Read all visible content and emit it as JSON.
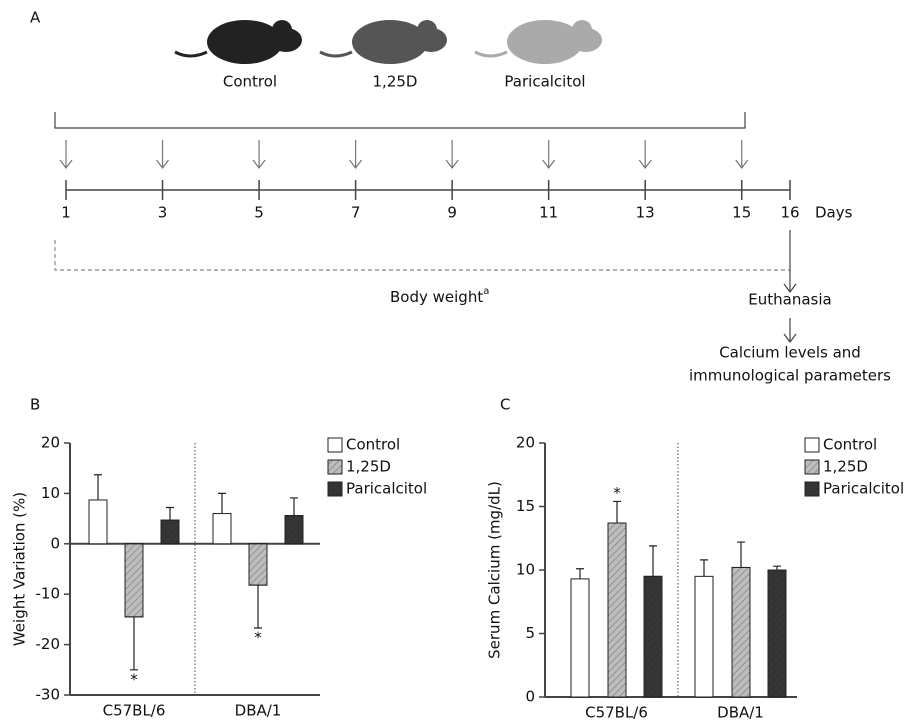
{
  "panel_a": {
    "label": "A",
    "groups": [
      "Control",
      "1,25D",
      "Paricalcitol"
    ],
    "days": [
      1,
      3,
      5,
      7,
      9,
      11,
      13,
      15,
      16
    ],
    "days_label": "Days",
    "body_weight": "Body weight",
    "superscript": "a",
    "euthanasia": "Euthanasia",
    "final": [
      "Calcium levels and",
      "immunological parameters"
    ]
  },
  "chart_data": [
    {
      "type": "bar",
      "panel": "B",
      "ylabel": "Weight Variation (%)",
      "categories": [
        "C57BL/6",
        "DBA/1"
      ],
      "series": [
        {
          "name": "Control",
          "color": "#ffffff",
          "values": [
            8.7,
            6
          ],
          "errors": [
            5,
            4
          ]
        },
        {
          "name": "1,25D",
          "color": "#bdbdbd",
          "pattern": "hatch",
          "values": [
            -14.5,
            -8.2
          ],
          "errors": [
            10.5,
            8.5
          ],
          "labels": [
            "*",
            "*"
          ]
        },
        {
          "name": "Paricalcitol",
          "color": "#333333",
          "pattern": "hatch",
          "values": [
            4.7,
            5.6
          ],
          "errors": [
            2.5,
            3.5
          ]
        }
      ],
      "ylim": [
        -30,
        20
      ],
      "yticks": [
        -30,
        -20,
        -10,
        0,
        10,
        20
      ]
    },
    {
      "type": "bar",
      "panel": "C",
      "ylabel": "Serum Calcium (mg/dL)",
      "categories": [
        "C57BL/6",
        "DBA/1"
      ],
      "series": [
        {
          "name": "Control",
          "color": "#ffffff",
          "values": [
            9.3,
            9.5
          ],
          "errors": [
            0.8,
            1.3
          ]
        },
        {
          "name": "1,25D",
          "color": "#bdbdbd",
          "pattern": "hatch",
          "values": [
            13.7,
            10.2
          ],
          "errors": [
            1.7,
            2.0
          ],
          "labels": [
            "*",
            null
          ]
        },
        {
          "name": "Paricalcitol",
          "color": "#333333",
          "pattern": "hatch",
          "values": [
            9.5,
            10.0
          ],
          "errors": [
            2.4,
            0.3
          ]
        }
      ],
      "ylim": [
        0,
        20
      ],
      "yticks": [
        0,
        5,
        10,
        15,
        20
      ]
    }
  ]
}
